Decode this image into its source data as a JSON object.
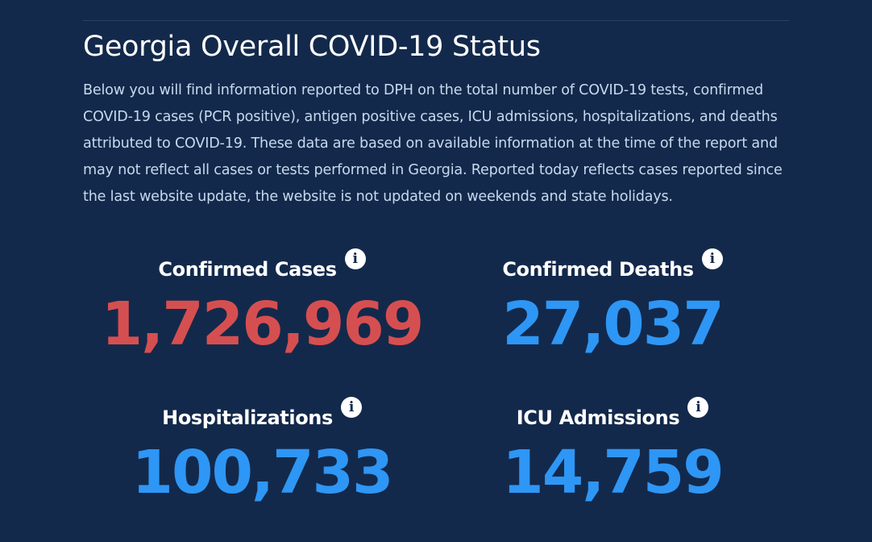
{
  "title": "Georgia Overall COVID-19 Status",
  "description": "Below you will find information reported to DPH on the total number of COVID-19 tests, confirmed COVID-19 cases (PCR positive), antigen positive cases, ICU admissions, hospitalizations, and deaths attributed to COVID-19. These data are based on available information at the time of the report and may not reflect all cases or tests performed in Georgia. Reported today reflects cases reported since the last website update, the website is not updated on weekends and state holidays.",
  "colors": {
    "background": "#13294b",
    "cases": "#d64f50",
    "other": "#2e96f5"
  },
  "stats": [
    {
      "label": "Confirmed Cases",
      "value": "1,726,969",
      "icon": "info-icon"
    },
    {
      "label": "Confirmed Deaths",
      "value": "27,037",
      "icon": "info-icon"
    },
    {
      "label": "Hospitalizations",
      "value": "100,733",
      "icon": "info-icon"
    },
    {
      "label": "ICU Admissions",
      "value": "14,759",
      "icon": "info-icon"
    }
  ],
  "info_glyph": "i"
}
